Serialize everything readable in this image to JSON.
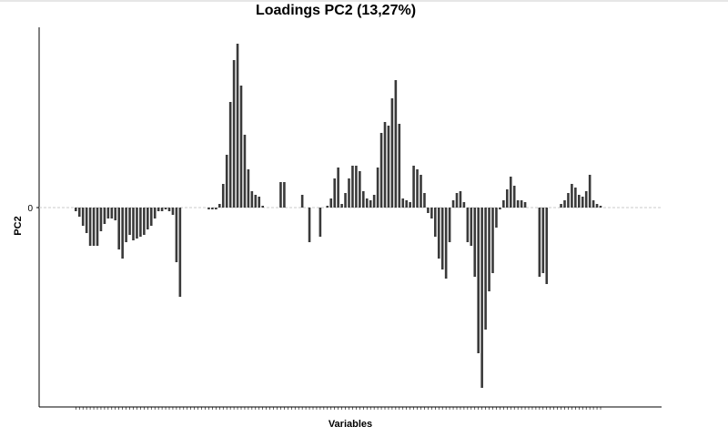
{
  "chart_data": {
    "type": "bar",
    "title": "Loadings PC2 (13,27%)",
    "xlabel": "Variables",
    "ylabel": "PC2",
    "y_ticks": [
      "0"
    ],
    "ylim": [
      -1.1,
      1.0
    ],
    "grid": false,
    "zero_line": "dashed",
    "values": [
      -0.02,
      -0.05,
      -0.1,
      -0.14,
      -0.21,
      -0.21,
      -0.21,
      -0.13,
      -0.09,
      -0.06,
      -0.06,
      -0.07,
      -0.23,
      -0.28,
      -0.19,
      -0.15,
      -0.18,
      -0.17,
      -0.16,
      -0.15,
      -0.12,
      -0.1,
      -0.06,
      -0.02,
      -0.02,
      -0.01,
      -0.02,
      -0.04,
      -0.3,
      -0.49,
      0,
      0,
      0,
      0,
      0,
      0,
      0,
      -0.01,
      -0.01,
      -0.01,
      0.02,
      0.13,
      0.29,
      0.58,
      0.81,
      0.9,
      0.67,
      0.4,
      0.21,
      0.09,
      0.07,
      0.06,
      0.01,
      0,
      0,
      0,
      0,
      0.14,
      0.14,
      0,
      0,
      0,
      0,
      0.07,
      0,
      -0.19,
      0,
      0,
      -0.16,
      0,
      0.01,
      0.05,
      0.16,
      0.22,
      0.02,
      0.08,
      0.16,
      0.23,
      0.23,
      0.2,
      0.09,
      0.05,
      0.04,
      0.07,
      0.22,
      0.41,
      0.47,
      0.45,
      0.6,
      0.7,
      0.46,
      0.05,
      0.04,
      0.03,
      0.23,
      0.21,
      0.18,
      0.08,
      -0.03,
      -0.06,
      -0.16,
      -0.28,
      -0.34,
      -0.39,
      -0.19,
      0.04,
      0.08,
      0.09,
      0.03,
      -0.19,
      -0.21,
      -0.38,
      -0.8,
      -0.99,
      -0.67,
      -0.46,
      -0.36,
      -0.11,
      -0.01,
      0.04,
      0.1,
      0.17,
      0.12,
      0.04,
      0.04,
      0.03,
      0,
      0,
      0,
      -0.38,
      -0.36,
      -0.42,
      0,
      0,
      0,
      0.02,
      0.04,
      0.08,
      0.13,
      0.11,
      0.07,
      0.06,
      0.09,
      0.18,
      0.04,
      0.02,
      0.01
    ]
  }
}
